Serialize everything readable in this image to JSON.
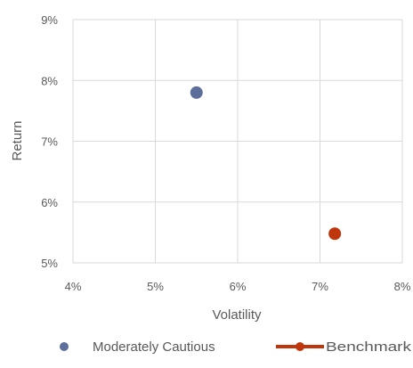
{
  "chart_data": {
    "type": "scatter",
    "title": "",
    "xlabel": "Volatility",
    "ylabel": "Return",
    "xlim": [
      4,
      8
    ],
    "ylim": [
      5,
      9
    ],
    "x_ticks": [
      "4%",
      "5%",
      "6%",
      "7%",
      "8%"
    ],
    "y_ticks": [
      "5%",
      "6%",
      "7%",
      "8%",
      "9%"
    ],
    "grid": true,
    "legend_position": "bottom",
    "series": [
      {
        "name": "Moderately Cautious",
        "color": "#5b6f9a",
        "marker": "circle",
        "points": [
          {
            "x": 5.5,
            "y": 7.8
          }
        ]
      },
      {
        "name": "Benchmark",
        "color": "#c0360c",
        "marker": "circle-line",
        "points": [
          {
            "x": 7.18,
            "y": 5.48
          }
        ]
      }
    ]
  }
}
